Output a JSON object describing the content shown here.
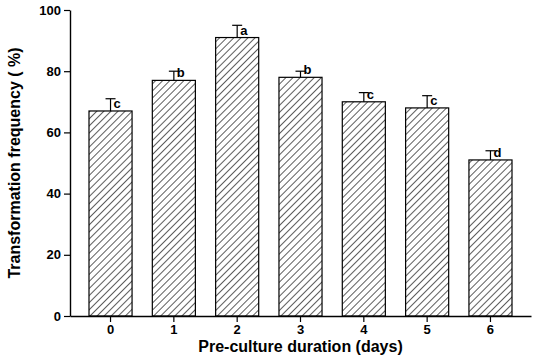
{
  "chart_data": {
    "type": "bar",
    "x_label": "Pre-culture duration (days)",
    "y_label": "Transformation frequency ( %)",
    "categories": [
      "0",
      "1",
      "2",
      "3",
      "4",
      "5",
      "6"
    ],
    "values": [
      67,
      77,
      91,
      78,
      70,
      68,
      51
    ],
    "errors": [
      4,
      3,
      4,
      2,
      3,
      4,
      3
    ],
    "annotations": [
      "c",
      "b",
      "a",
      "b",
      "c",
      "c",
      "d"
    ],
    "color": "#333333",
    "ylim": [
      0,
      100
    ],
    "yticks": [
      0,
      20,
      40,
      60,
      80,
      100
    ],
    "grid": false
  }
}
